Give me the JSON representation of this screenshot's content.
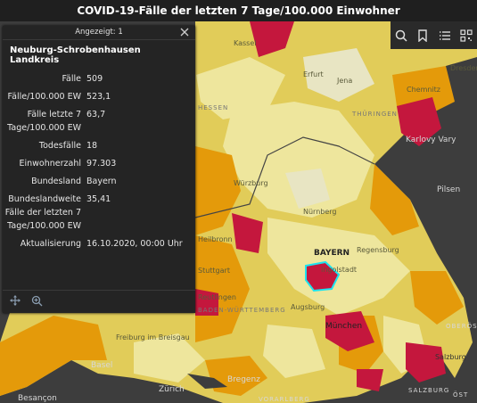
{
  "title": "COVID-19-Fälle der letzten 7 Tage/100.000 Einwohner",
  "colors": {
    "very_high": "#c4173d",
    "high": "#e49a0a",
    "medium": "#e1cc59",
    "low": "#eee69d",
    "very_low": "#e8e5c3",
    "background": "#3d3d3d",
    "selected_outline": "#1ce3f0"
  },
  "popup": {
    "header": "Angezeigt: 1",
    "title": "Neuburg-Schrobenhausen Landkreis",
    "fields": [
      {
        "label": "Fälle",
        "value": "509"
      },
      {
        "label": "Fälle/100.000 EW",
        "value": "523,1"
      },
      {
        "label": "Fälle letzte 7 Tage/100.000 EW",
        "value": "63,7"
      },
      {
        "label": "Todesfälle",
        "value": "18"
      },
      {
        "label": "Einwohnerzahl",
        "value": "97.303"
      },
      {
        "label": "Bundesland",
        "value": "Bayern"
      },
      {
        "label": "Bundeslandweite Fälle der letzten 7 Tage/100.000 EW",
        "value": "35,41"
      },
      {
        "label": "Aktualisierung",
        "value": "16.10.2020, 00:00 Uhr"
      }
    ]
  },
  "toolbar": [
    "search-icon",
    "bookmark-icon",
    "list-icon",
    "qr-icon"
  ],
  "map_labels": {
    "kassel": "Kassel",
    "erfurt": "Erfurt",
    "jena": "Jena",
    "dresden": "Dresden",
    "chemnitz": "Chemnitz",
    "karlovy_vary": "Karlovy Vary",
    "wurzburg": "Würzburg",
    "nurnberg": "Nürnberg",
    "pilsen": "Pilsen",
    "bayern": "BAYERN",
    "regensburg": "Regensburg",
    "ingolstadt": "Ingolstadt",
    "heilbronn": "Heilbronn",
    "stuttgart": "Stuttgart",
    "reutlingen": "Reutlingen",
    "augsburg": "Augsburg",
    "munchen": "München",
    "freiburg": "Freiburg im Breisgau",
    "basel": "Basel",
    "zurich": "Zürich",
    "bregenz": "Bregenz",
    "salzburg": "Salzburg",
    "ober": "OBERÖS",
    "salzburg_region": "SALZBURG",
    "vorarlberg": "VORARLBERG",
    "osterreich": "ÖST",
    "besancon": "Besançon",
    "bawue": "BADEN-WÜRTTEMBERG",
    "thuringen": "THÜRINGEN",
    "hessen": "HESSEN"
  }
}
